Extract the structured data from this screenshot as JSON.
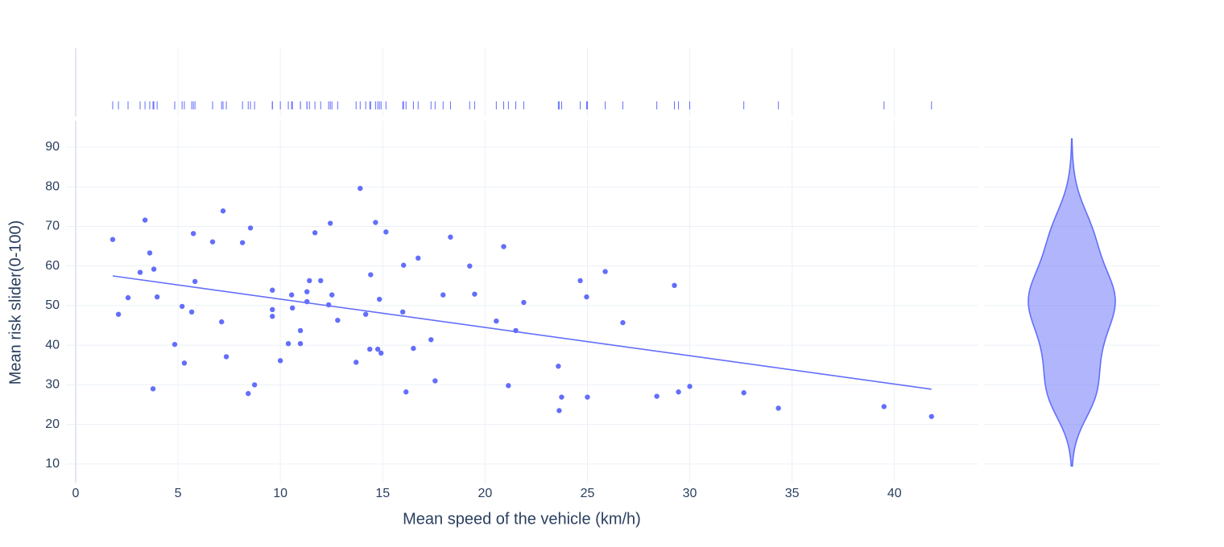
{
  "chart_data": {
    "type": "scatter",
    "x_label": "Mean speed of the vehicle (km/h)",
    "y_label": "Mean risk slider(0-100)",
    "color": "#636efa",
    "marginal_x": "rug",
    "marginal_y": "violin",
    "grid": true,
    "x": [
      1.81,
      2.09,
      2.56,
      3.15,
      3.39,
      3.62,
      3.82,
      3.78,
      3.98,
      4.84,
      5.2,
      5.31,
      5.67,
      5.75,
      5.83,
      6.69,
      7.13,
      7.2,
      7.36,
      8.15,
      8.43,
      8.54,
      8.74,
      9.61,
      9.61,
      9.61,
      10.0,
      10.39,
      10.55,
      10.59,
      10.98,
      10.98,
      11.3,
      11.3,
      11.42,
      11.69,
      11.97,
      12.36,
      12.44,
      12.52,
      12.8,
      13.7,
      13.9,
      14.17,
      14.37,
      14.41,
      14.65,
      14.76,
      14.84,
      14.92,
      15.16,
      15.98,
      16.02,
      16.14,
      16.5,
      16.73,
      17.36,
      17.56,
      17.95,
      18.31,
      19.25,
      19.49,
      20.55,
      20.91,
      21.14,
      21.5,
      21.89,
      23.58,
      23.62,
      23.74,
      24.65,
      24.96,
      25.0,
      25.87,
      26.73,
      28.39,
      29.25,
      29.45,
      30.0,
      32.64,
      34.33,
      39.49,
      41.81
    ],
    "values": [
      66.7,
      47.8,
      52.0,
      58.4,
      71.6,
      63.3,
      59.2,
      29.0,
      52.2,
      40.2,
      49.8,
      35.5,
      48.4,
      68.2,
      56.1,
      66.1,
      45.9,
      73.9,
      37.1,
      65.9,
      27.8,
      69.6,
      30.0,
      53.9,
      49.0,
      47.3,
      36.1,
      40.4,
      52.7,
      49.4,
      43.7,
      40.4,
      53.5,
      51.0,
      56.3,
      68.4,
      56.3,
      50.2,
      70.8,
      52.7,
      46.3,
      35.7,
      79.6,
      47.8,
      39.0,
      57.8,
      71.0,
      39.0,
      51.6,
      38.0,
      68.6,
      48.4,
      60.2,
      28.2,
      39.2,
      62.0,
      41.4,
      31.0,
      52.7,
      67.3,
      60.0,
      52.9,
      46.1,
      64.9,
      29.8,
      43.7,
      50.8,
      34.7,
      23.5,
      26.9,
      56.3,
      52.2,
      26.9,
      58.6,
      45.7,
      27.1,
      55.1,
      28.2,
      29.6,
      28.0,
      24.1,
      24.5,
      22.0
    ],
    "trendline": {
      "x": [
        1.81,
        41.81
      ],
      "y": [
        57.5,
        28.9
      ]
    },
    "xlim": [
      -0.47,
      44.1
    ],
    "xticks": [
      0,
      5,
      10,
      15,
      20,
      25,
      30,
      35,
      40
    ],
    "ylim": [
      5.3,
      96.7
    ],
    "yticks": [
      10,
      20,
      30,
      40,
      50,
      60,
      70,
      80,
      90
    ]
  }
}
